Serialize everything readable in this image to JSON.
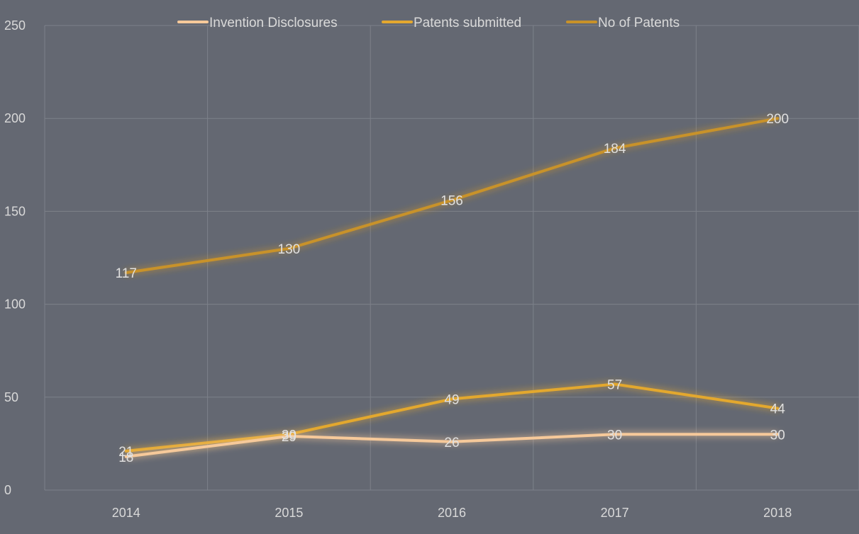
{
  "chart_data": {
    "type": "line",
    "title": "",
    "xlabel": "",
    "ylabel": "",
    "categories": [
      "2014",
      "2015",
      "2016",
      "2017",
      "2018"
    ],
    "ylim": [
      0,
      250
    ],
    "y_ticks": [
      0,
      50,
      100,
      150,
      200,
      250
    ],
    "grid": true,
    "legend_position": "top-center",
    "data_labels": true,
    "series": [
      {
        "name": "Invention Disclosures",
        "values": [
          18,
          29,
          26,
          30,
          30
        ],
        "color": "#f6c99a"
      },
      {
        "name": "Patents submitted",
        "values": [
          21,
          30,
          49,
          57,
          44
        ],
        "color": "#e3a82f"
      },
      {
        "name": "No of Patents",
        "values": [
          117,
          130,
          156,
          184,
          200
        ],
        "color": "#c89229"
      }
    ]
  }
}
